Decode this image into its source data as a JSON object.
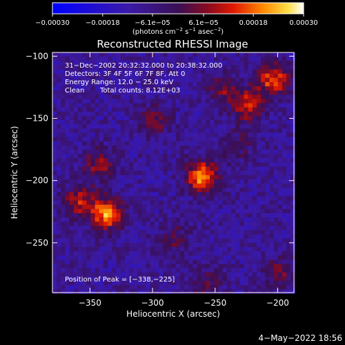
{
  "chart_data": {
    "type": "heatmap",
    "title": "Reconstructed RHESSI Image",
    "xlabel": "Heliocentric X (arcsec)",
    "ylabel": "Heliocentric Y (arcsec)",
    "xlim": [
      -380,
      -187
    ],
    "ylim": [
      -290,
      -97
    ],
    "x_ticks": [
      -350,
      -300,
      -250,
      -200
    ],
    "x_tick_labels": [
      "−350",
      "−300",
      "−250",
      "−200"
    ],
    "y_ticks": [
      -100,
      -150,
      -200,
      -250
    ],
    "y_tick_labels": [
      "−100",
      "−150",
      "−200",
      "−250"
    ],
    "colorbar": {
      "min": -0.0003,
      "max": 0.0003,
      "ticks": [
        -0.0003,
        -0.00018,
        -6.1e-05,
        6.1e-05,
        0.00018,
        0.0003
      ],
      "tick_labels": [
        "−0.00030",
        "−0.00018",
        "−6.1e−05",
        "6.1e−05",
        "0.00018",
        "0.00030"
      ],
      "unit_prefix": "(photons cm",
      "unit_exp1": "−2",
      "unit_mid1": " s",
      "unit_exp2": "−1",
      "unit_mid2": " asec",
      "unit_exp3": "−2",
      "unit_suffix": ")"
    },
    "info_lines": [
      "31−Dec−2002 20:32:32.000 to 20:38:32.000",
      "Detectors: 3F 4F 5F 6F 7F 8F, Att 0",
      "Energy Range: 12.0 − 25.0 keV"
    ],
    "clean_label": "Clean",
    "total_counts": "Total counts: 8.12E+03",
    "peak_text": "Position of Peak = [−338,−225]",
    "peak": [
      -338,
      -225
    ],
    "bright_sources": [
      {
        "x": -262,
        "y": -195,
        "v": 0.0003
      },
      {
        "x": -338,
        "y": -225,
        "v": 0.0003
      },
      {
        "x": -205,
        "y": -117,
        "v": 0.00025
      },
      {
        "x": -225,
        "y": -138,
        "v": 0.00022
      },
      {
        "x": -360,
        "y": -215,
        "v": 0.00018
      },
      {
        "x": -345,
        "y": -185,
        "v": 0.00016
      },
      {
        "x": -300,
        "y": -150,
        "v": 0.00012
      },
      {
        "x": -285,
        "y": -245,
        "v": 0.0001
      },
      {
        "x": -200,
        "y": -272,
        "v": 0.00012
      },
      {
        "x": -245,
        "y": -125,
        "v": 0.00013
      },
      {
        "x": -235,
        "y": -170,
        "v": 0.0001
      },
      {
        "x": -258,
        "y": -280,
        "v": 0.00011
      }
    ],
    "date_stamp": "4−May−2022 18:56"
  }
}
